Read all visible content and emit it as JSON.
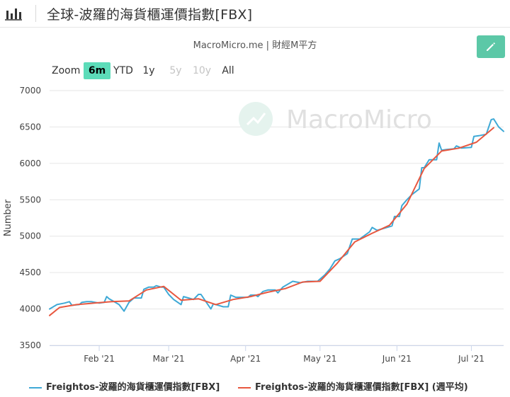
{
  "header": {
    "title": "全球-波羅的海貨櫃運價指數[FBX]",
    "icon": "bar-chart-icon"
  },
  "subtitle": "MacroMicro.me | 財經M平方",
  "watermark": "MacroMicro",
  "edit_button": {
    "icon": "pencil-icon",
    "color": "#5cc8a7"
  },
  "zoom": {
    "label": "Zoom",
    "buttons": [
      {
        "label": "6m",
        "state": "active"
      },
      {
        "label": "YTD",
        "state": "normal"
      },
      {
        "label": "1y",
        "state": "normal"
      },
      {
        "label": "5y",
        "state": "disabled"
      },
      {
        "label": "10y",
        "state": "disabled"
      },
      {
        "label": "All",
        "state": "normal"
      }
    ]
  },
  "chart_data": {
    "type": "line",
    "ylabel": "Number",
    "ylim": [
      3500,
      7000
    ],
    "yticks": [
      3500,
      4000,
      4500,
      5000,
      5500,
      6000,
      6500,
      7000
    ],
    "x_range": [
      "2021-01-12",
      "2021-07-12"
    ],
    "x_ticks": [
      {
        "label": "Feb '21",
        "date": "2021-02-01"
      },
      {
        "label": "Mar '21",
        "date": "2021-03-01"
      },
      {
        "label": "Apr '21",
        "date": "2021-04-01"
      },
      {
        "label": "May '21",
        "date": "2021-05-01"
      },
      {
        "label": "Jun '21",
        "date": "2021-06-01"
      },
      {
        "label": "Jul '21",
        "date": "2021-07-01"
      }
    ],
    "grid": true,
    "legend_position": "bottom",
    "series": [
      {
        "name": "Freightos-波羅的海貨櫃運價指數[FBX]",
        "color": "#3fa9d6",
        "points": [
          [
            "2021-01-12",
            4000
          ],
          [
            "2021-01-15",
            4060
          ],
          [
            "2021-01-18",
            4080
          ],
          [
            "2021-01-20",
            4100
          ],
          [
            "2021-01-21",
            4050
          ],
          [
            "2021-01-24",
            4060
          ],
          [
            "2021-01-25",
            4090
          ],
          [
            "2021-01-27",
            4100
          ],
          [
            "2021-01-29",
            4100
          ],
          [
            "2021-02-01",
            4080
          ],
          [
            "2021-02-03",
            4090
          ],
          [
            "2021-02-04",
            4170
          ],
          [
            "2021-02-05",
            4140
          ],
          [
            "2021-02-07",
            4100
          ],
          [
            "2021-02-09",
            4060
          ],
          [
            "2021-02-11",
            3970
          ],
          [
            "2021-02-13",
            4090
          ],
          [
            "2021-02-15",
            4150
          ],
          [
            "2021-02-18",
            4150
          ],
          [
            "2021-02-19",
            4270
          ],
          [
            "2021-02-21",
            4300
          ],
          [
            "2021-02-23",
            4300
          ],
          [
            "2021-02-24",
            4320
          ],
          [
            "2021-02-26",
            4300
          ],
          [
            "2021-02-27",
            4300
          ],
          [
            "2021-03-01",
            4200
          ],
          [
            "2021-03-03",
            4130
          ],
          [
            "2021-03-06",
            4060
          ],
          [
            "2021-03-07",
            4170
          ],
          [
            "2021-03-09",
            4150
          ],
          [
            "2021-03-11",
            4130
          ],
          [
            "2021-03-13",
            4200
          ],
          [
            "2021-03-14",
            4200
          ],
          [
            "2021-03-16",
            4100
          ],
          [
            "2021-03-18",
            4000
          ],
          [
            "2021-03-19",
            4070
          ],
          [
            "2021-03-21",
            4050
          ],
          [
            "2021-03-23",
            4030
          ],
          [
            "2021-03-25",
            4030
          ],
          [
            "2021-03-26",
            4190
          ],
          [
            "2021-03-28",
            4160
          ],
          [
            "2021-03-31",
            4160
          ],
          [
            "2021-04-02",
            4160
          ],
          [
            "2021-04-03",
            4190
          ],
          [
            "2021-04-05",
            4190
          ],
          [
            "2021-04-06",
            4170
          ],
          [
            "2021-04-08",
            4240
          ],
          [
            "2021-04-10",
            4260
          ],
          [
            "2021-04-13",
            4260
          ],
          [
            "2021-04-14",
            4220
          ],
          [
            "2021-04-16",
            4300
          ],
          [
            "2021-04-20",
            4380
          ],
          [
            "2021-04-23",
            4360
          ],
          [
            "2021-04-26",
            4380
          ],
          [
            "2021-04-30",
            4380
          ],
          [
            "2021-05-03",
            4470
          ],
          [
            "2021-05-05",
            4550
          ],
          [
            "2021-05-07",
            4660
          ],
          [
            "2021-05-09",
            4690
          ],
          [
            "2021-05-12",
            4760
          ],
          [
            "2021-05-14",
            4960
          ],
          [
            "2021-05-17",
            4960
          ],
          [
            "2021-05-19",
            5010
          ],
          [
            "2021-05-21",
            5060
          ],
          [
            "2021-05-22",
            5120
          ],
          [
            "2021-05-24",
            5080
          ],
          [
            "2021-05-27",
            5110
          ],
          [
            "2021-05-30",
            5140
          ],
          [
            "2021-05-31",
            5270
          ],
          [
            "2021-06-02",
            5270
          ],
          [
            "2021-06-03",
            5420
          ],
          [
            "2021-06-05",
            5500
          ],
          [
            "2021-06-07",
            5570
          ],
          [
            "2021-06-10",
            5650
          ],
          [
            "2021-06-11",
            5940
          ],
          [
            "2021-06-12",
            5940
          ],
          [
            "2021-06-14",
            6050
          ],
          [
            "2021-06-17",
            6050
          ],
          [
            "2021-06-18",
            6280
          ],
          [
            "2021-06-19",
            6180
          ],
          [
            "2021-06-21",
            6190
          ],
          [
            "2021-06-24",
            6200
          ],
          [
            "2021-06-25",
            6240
          ],
          [
            "2021-06-27",
            6210
          ],
          [
            "2021-07-01",
            6220
          ],
          [
            "2021-07-02",
            6370
          ],
          [
            "2021-07-04",
            6380
          ],
          [
            "2021-07-07",
            6400
          ],
          [
            "2021-07-09",
            6600
          ],
          [
            "2021-07-10",
            6610
          ],
          [
            "2021-07-12",
            6500
          ],
          [
            "2021-07-14",
            6440
          ]
        ]
      },
      {
        "name": "Freightos-波羅的海貨櫃運價指數[FBX] (週平均)",
        "color": "#e8573f",
        "points": [
          [
            "2021-01-12",
            3910
          ],
          [
            "2021-01-16",
            4020
          ],
          [
            "2021-01-23",
            4060
          ],
          [
            "2021-01-30",
            4080
          ],
          [
            "2021-02-06",
            4100
          ],
          [
            "2021-02-13",
            4110
          ],
          [
            "2021-02-20",
            4260
          ],
          [
            "2021-02-27",
            4310
          ],
          [
            "2021-03-06",
            4120
          ],
          [
            "2021-03-13",
            4140
          ],
          [
            "2021-03-20",
            4060
          ],
          [
            "2021-03-27",
            4130
          ],
          [
            "2021-04-03",
            4170
          ],
          [
            "2021-04-10",
            4230
          ],
          [
            "2021-04-17",
            4280
          ],
          [
            "2021-04-24",
            4370
          ],
          [
            "2021-05-01",
            4380
          ],
          [
            "2021-05-08",
            4630
          ],
          [
            "2021-05-15",
            4920
          ],
          [
            "2021-05-22",
            5040
          ],
          [
            "2021-05-29",
            5150
          ],
          [
            "2021-06-05",
            5440
          ],
          [
            "2021-06-12",
            5930
          ],
          [
            "2021-06-19",
            6170
          ],
          [
            "2021-06-26",
            6210
          ],
          [
            "2021-07-03",
            6290
          ],
          [
            "2021-07-10",
            6490
          ]
        ]
      }
    ]
  }
}
